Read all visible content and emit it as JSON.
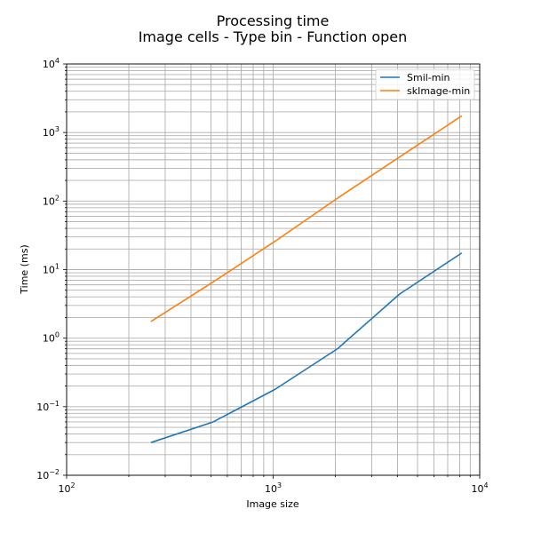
{
  "chart_data": {
    "type": "line",
    "title": [
      "Processing time",
      "Image cells - Type bin - Function open"
    ],
    "xlabel": "Image size",
    "ylabel": "Time (ms)",
    "xscale": "log",
    "yscale": "log",
    "xlim": [
      100,
      10000
    ],
    "ylim": [
      0.01,
      10000
    ],
    "x_ticks": [
      {
        "value": 100,
        "base": "10",
        "exp": "2"
      },
      {
        "value": 1000,
        "base": "10",
        "exp": "3"
      },
      {
        "value": 10000,
        "base": "10",
        "exp": "4"
      }
    ],
    "y_ticks": [
      {
        "value": 0.01,
        "base": "10",
        "exp": "−2"
      },
      {
        "value": 0.1,
        "base": "10",
        "exp": "−1"
      },
      {
        "value": 1,
        "base": "10",
        "exp": "0"
      },
      {
        "value": 10,
        "base": "10",
        "exp": "1"
      },
      {
        "value": 100,
        "base": "10",
        "exp": "2"
      },
      {
        "value": 1000,
        "base": "10",
        "exp": "3"
      },
      {
        "value": 10000,
        "base": "10",
        "exp": "4"
      }
    ],
    "grid": "major and minor",
    "legend_position": "top-right",
    "series": [
      {
        "name": "Smil-min",
        "color": "#1f77b4",
        "x": [
          256,
          512,
          1024,
          2048,
          4096,
          8192
        ],
        "y": [
          0.03,
          0.06,
          0.18,
          0.7,
          4.4,
          17.5
        ]
      },
      {
        "name": "skImage-min",
        "color": "#ff7f0e",
        "x": [
          256,
          512,
          1024,
          2048,
          4096,
          8192
        ],
        "y": [
          1.75,
          6.6,
          26,
          110,
          440,
          1750
        ]
      }
    ]
  }
}
